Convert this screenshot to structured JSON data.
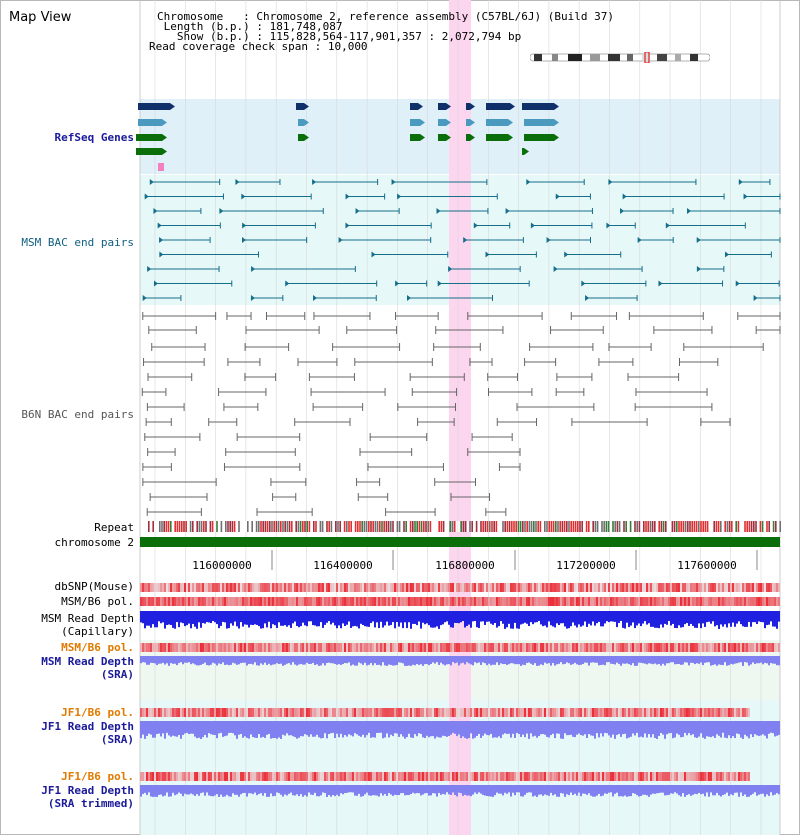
{
  "title": "Map View",
  "header": {
    "chromosome_label": "Chromosome   ",
    "chromosome_value": ": Chromosome 2, reference assembly (C57BL/6J) (Build 37)",
    "length_label": " Length (b.p.) ",
    "length_value": ": 181,748,087",
    "show_label": "   Show (b.p.) ",
    "show_value": ": 115,828,564-117,901,357 : 2,072,794 bp",
    "coverage_label": "Read coverage check span ",
    "coverage_value": ": 10,000"
  },
  "tracks": {
    "refseq": "RefSeq Genes",
    "msm_bac": "MSM BAC end pairs",
    "b6n_bac": "B6N BAC end pairs",
    "repeat": "Repeat",
    "chromosome": "chromosome 2",
    "dbsnp": "dbSNP(Mouse)",
    "msm_b6_pol": "MSM/B6 pol.",
    "msm_read_depth_cap_1": "MSM Read Depth",
    "msm_read_depth_cap_2": "(Capillary)",
    "msm_b6_pol_2": "MSM/B6 pol.",
    "msm_read_depth_sra_1": "MSM Read Depth",
    "msm_read_depth_sra_2": "(SRA)",
    "jf1_b6_pol": "JF1/B6 pol.",
    "jf1_read_depth_sra_1": "JF1 Read Depth",
    "jf1_read_depth_sra_2": "(SRA)",
    "jf1_b6_pol_2": "JF1/B6 pol.",
    "jf1_read_depth_trim_1": "JF1 Read Depth",
    "jf1_read_depth_trim_2": "(SRA trimmed)"
  },
  "axis": {
    "ticks": [
      "116000000",
      "116400000",
      "116800000",
      "117200000",
      "117600000"
    ]
  },
  "colors": {
    "refseq_bg": "#dff0f8",
    "msm_bg": "#e6f8f8",
    "highlight": "#fbd6ee",
    "chromosome_bar": "#0a6e0a",
    "read_depth_blue": "#2020e0",
    "read_depth_light": "#8080f0",
    "snp_red": "#e03030",
    "teal_feature": "#156e8a",
    "gray_feature": "#666666"
  }
}
